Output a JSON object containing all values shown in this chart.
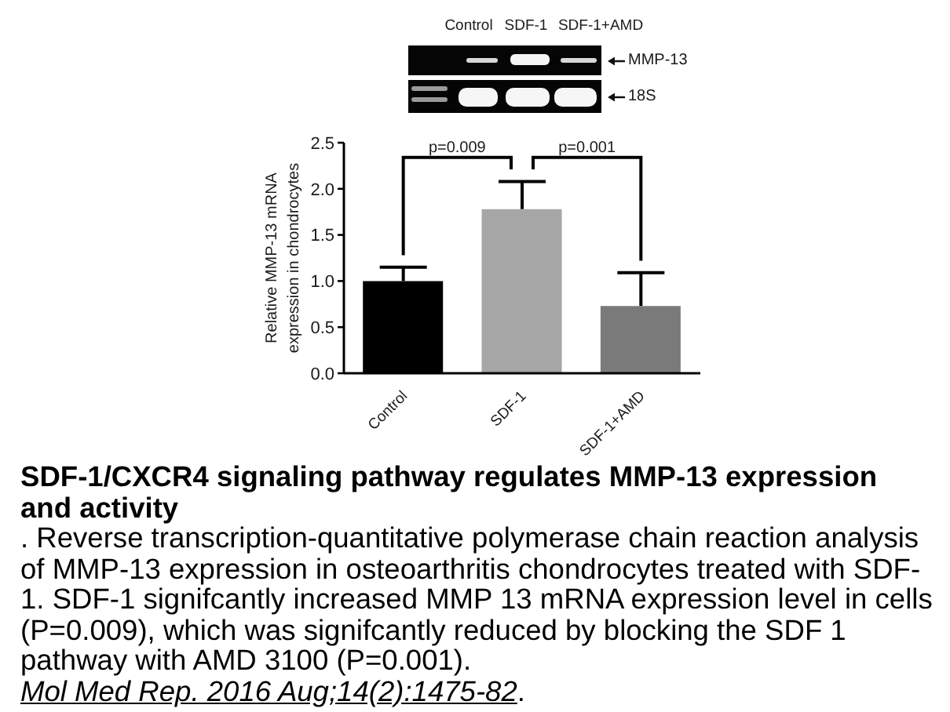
{
  "chart_data": {
    "type": "bar",
    "title": "SDF-1/CXCR4 signaling pathway regulates MMP-13 expression and activity",
    "ylabel": "Relative MMP-13 mRNA\nexpression in chondrocytes",
    "categories": [
      "Control",
      "SDF-1",
      "SDF-1+AMD"
    ],
    "values": [
      1.0,
      1.78,
      0.73
    ],
    "colors": [
      "#000000",
      "#a6a6a6",
      "#7a7a7a"
    ],
    "errors": [
      [
        1.0,
        1.15
      ],
      [
        1.78,
        2.08
      ],
      [
        0.73,
        1.09
      ]
    ],
    "ylim": [
      0,
      2.5
    ],
    "yticks": [
      {
        "value": 0,
        "label": "0.0"
      },
      0.5,
      {
        "value": 1,
        "label": "1.0"
      },
      1.5,
      {
        "value": 2,
        "label": "2.0"
      },
      2.5
    ],
    "annotations": [
      "p=0.009",
      "p=0.001",
      "Control",
      "SDF-1",
      "SDF-1+AMD",
      "MMP-13",
      "18S",
      ". Reverse transcription-quantitative polymerase chain reaction analysis of MMP-13 expression in osteoarthritis chondrocytes treated with SDF-1. SDF-1 signifcantly increased MMP 13 mRNA expression level in cells (P=0.009), which was signifcantly reduced by blocking the SDF 1 pathway with AMD 3100 (P=0.001).",
      "Mol Med Rep. 2016 Aug;14(2):1475-82."
    ]
  }
}
